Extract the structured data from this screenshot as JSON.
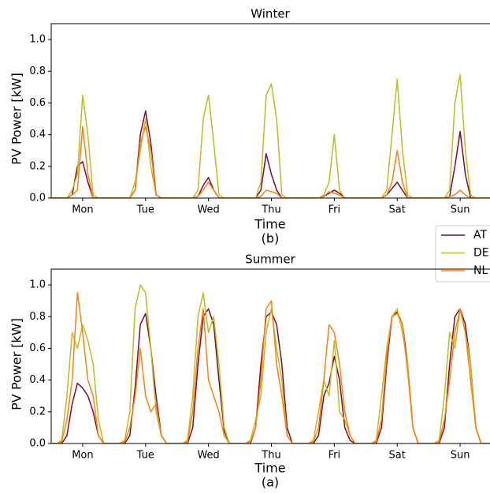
{
  "chart_data": [
    {
      "type": "line",
      "title": "Winter",
      "xlabel": "Time",
      "caption": "(b)",
      "ylabel": "PV Power [kW]",
      "legend": "outside right",
      "xlim": [
        0,
        168
      ],
      "ylim": [
        0,
        1.1
      ],
      "xticks": [
        {
          "value": 12,
          "label": "Mon"
        },
        {
          "value": 36,
          "label": "Tue"
        },
        {
          "value": 60,
          "label": "Wed"
        },
        {
          "value": 84,
          "label": "Thu"
        },
        {
          "value": 108,
          "label": "Fri"
        },
        {
          "value": 132,
          "label": "Sat"
        },
        {
          "value": 156,
          "label": "Sun"
        }
      ],
      "yticks": [
        {
          "value": 0,
          "label": "0.0"
        },
        0.2,
        0.4,
        0.6,
        0.8,
        {
          "value": 1,
          "label": "1.0"
        }
      ],
      "x": [
        0,
        2,
        4,
        6,
        8,
        10,
        12,
        14,
        16,
        18,
        20,
        22,
        24,
        26,
        28,
        30,
        32,
        34,
        36,
        38,
        40,
        42,
        44,
        46,
        48,
        50,
        52,
        54,
        56,
        58,
        60,
        62,
        64,
        66,
        68,
        70,
        72,
        74,
        76,
        78,
        80,
        82,
        84,
        86,
        88,
        90,
        92,
        94,
        96,
        98,
        100,
        102,
        104,
        106,
        108,
        110,
        112,
        114,
        116,
        118,
        120,
        122,
        124,
        126,
        128,
        130,
        132,
        134,
        136,
        138,
        140,
        142,
        144,
        146,
        148,
        150,
        152,
        154,
        156,
        158,
        160,
        162,
        164,
        166,
        168
      ],
      "series": [
        {
          "name": "AT",
          "color": "#7b0a2e",
          "values": [
            0,
            0,
            0,
            0,
            0.02,
            0.2,
            0.23,
            0.1,
            0,
            0,
            0,
            0,
            0,
            0,
            0,
            0,
            0.05,
            0.4,
            0.55,
            0.35,
            0.02,
            0,
            0,
            0,
            0,
            0,
            0,
            0,
            0.01,
            0.08,
            0.13,
            0.05,
            0,
            0,
            0,
            0,
            0,
            0,
            0,
            0,
            0.05,
            0.28,
            0.15,
            0.05,
            0,
            0,
            0,
            0,
            0,
            0,
            0,
            0,
            0.01,
            0.03,
            0.05,
            0.03,
            0,
            0,
            0,
            0,
            0,
            0,
            0,
            0,
            0.02,
            0.06,
            0.1,
            0.05,
            0,
            0,
            0,
            0,
            0,
            0,
            0,
            0,
            0.01,
            0.2,
            0.42,
            0.15,
            0,
            0,
            0,
            0,
            0
          ]
        },
        {
          "name": "DE",
          "color": "#bcbd22",
          "values": [
            0,
            0,
            0,
            0,
            0.05,
            0.15,
            0.65,
            0.4,
            0.02,
            0,
            0,
            0,
            0,
            0,
            0,
            0,
            0.1,
            0.3,
            0.5,
            0.2,
            0.02,
            0,
            0,
            0,
            0,
            0,
            0,
            0,
            0.05,
            0.5,
            0.65,
            0.35,
            0.02,
            0,
            0,
            0,
            0,
            0,
            0,
            0,
            0.1,
            0.65,
            0.72,
            0.5,
            0.02,
            0,
            0,
            0,
            0,
            0,
            0,
            0,
            0.02,
            0.1,
            0.4,
            0.05,
            0,
            0,
            0,
            0,
            0,
            0,
            0,
            0,
            0.05,
            0.4,
            0.75,
            0.3,
            0.02,
            0,
            0,
            0,
            0,
            0,
            0,
            0,
            0.05,
            0.6,
            0.78,
            0.3,
            0.02,
            0,
            0,
            0,
            0
          ]
        },
        {
          "name": "NL",
          "color": "#ff7f0e",
          "values": [
            0,
            0,
            0,
            0,
            0.02,
            0.05,
            0.45,
            0.15,
            0,
            0,
            0,
            0,
            0,
            0,
            0,
            0,
            0.05,
            0.35,
            0.45,
            0.3,
            0.02,
            0,
            0,
            0,
            0,
            0,
            0,
            0,
            0.01,
            0.05,
            0.1,
            0.05,
            0,
            0,
            0,
            0,
            0,
            0,
            0,
            0,
            0.01,
            0.05,
            0.04,
            0.03,
            0,
            0,
            0,
            0,
            0,
            0,
            0,
            0,
            0.01,
            0.04,
            0.03,
            0.02,
            0,
            0,
            0,
            0,
            0,
            0,
            0,
            0,
            0.02,
            0.1,
            0.3,
            0.1,
            0,
            0,
            0,
            0,
            0,
            0,
            0,
            0,
            0.01,
            0.02,
            0.05,
            0.02,
            0,
            0,
            0,
            0,
            0
          ]
        }
      ]
    },
    {
      "type": "line",
      "title": "Summer",
      "xlabel": "Time",
      "caption": "(a)",
      "ylabel": "PV Power [kW]",
      "xlim": [
        0,
        168
      ],
      "ylim": [
        0,
        1.1
      ],
      "xticks": [
        {
          "value": 12,
          "label": "Mon"
        },
        {
          "value": 36,
          "label": "Tue"
        },
        {
          "value": 60,
          "label": "Wed"
        },
        {
          "value": 84,
          "label": "Thu"
        },
        {
          "value": 108,
          "label": "Fri"
        },
        {
          "value": 132,
          "label": "Sat"
        },
        {
          "value": 156,
          "label": "Sun"
        }
      ],
      "yticks": [
        {
          "value": 0,
          "label": "0.0"
        },
        0.2,
        0.4,
        0.6,
        0.8,
        {
          "value": 1,
          "label": "1.0"
        }
      ],
      "x": [
        0,
        2,
        4,
        6,
        8,
        10,
        12,
        14,
        16,
        18,
        20,
        22,
        24,
        26,
        28,
        30,
        32,
        34,
        36,
        38,
        40,
        42,
        44,
        46,
        48,
        50,
        52,
        54,
        56,
        58,
        60,
        62,
        64,
        66,
        68,
        70,
        72,
        74,
        76,
        78,
        80,
        82,
        84,
        86,
        88,
        90,
        92,
        94,
        96,
        98,
        100,
        102,
        104,
        106,
        108,
        110,
        112,
        114,
        116,
        118,
        120,
        122,
        124,
        126,
        128,
        130,
        132,
        134,
        136,
        138,
        140,
        142,
        144,
        146,
        148,
        150,
        152,
        154,
        156,
        158,
        160,
        162,
        164,
        166,
        168
      ],
      "series": [
        {
          "name": "AT",
          "color": "#7b0a2e",
          "values": [
            0,
            0,
            0,
            0.05,
            0.25,
            0.38,
            0.35,
            0.3,
            0.2,
            0.05,
            0,
            0,
            0,
            0,
            0,
            0.05,
            0.35,
            0.75,
            0.82,
            0.6,
            0.3,
            0.05,
            0,
            0,
            0,
            0,
            0,
            0.1,
            0.5,
            0.8,
            0.85,
            0.75,
            0.4,
            0.08,
            0,
            0,
            0,
            0,
            0,
            0.1,
            0.5,
            0.8,
            0.83,
            0.75,
            0.5,
            0.1,
            0,
            0,
            0,
            0,
            0,
            0.05,
            0.3,
            0.38,
            0.55,
            0.4,
            0.1,
            0.02,
            0,
            0,
            0,
            0,
            0,
            0.1,
            0.5,
            0.8,
            0.83,
            0.75,
            0.5,
            0.1,
            0,
            0,
            0,
            0,
            0,
            0.1,
            0.5,
            0.8,
            0.85,
            0.75,
            0.5,
            0.1,
            0,
            0,
            0
          ]
        },
        {
          "name": "DE",
          "color": "#bcbd22",
          "values": [
            0,
            0,
            0.02,
            0.3,
            0.7,
            0.6,
            0.75,
            0.65,
            0.5,
            0.15,
            0,
            0,
            0,
            0,
            0.02,
            0.2,
            0.85,
            1.0,
            0.95,
            0.6,
            0.2,
            0.05,
            0,
            0,
            0,
            0,
            0.02,
            0.3,
            0.8,
            0.95,
            0.7,
            0.8,
            0.5,
            0.1,
            0,
            0,
            0,
            0,
            0.02,
            0.15,
            0.3,
            0.7,
            0.85,
            0.6,
            0.4,
            0.05,
            0,
            0,
            0,
            0,
            0.02,
            0.2,
            0.4,
            0.3,
            0.65,
            0.2,
            0.15,
            0.05,
            0,
            0,
            0,
            0,
            0.02,
            0.3,
            0.6,
            0.8,
            0.85,
            0.7,
            0.5,
            0.1,
            0,
            0,
            0,
            0,
            0.02,
            0.3,
            0.7,
            0.6,
            0.85,
            0.7,
            0.5,
            0.1,
            0,
            0,
            0
          ]
        },
        {
          "name": "NL",
          "color": "#ff7f0e",
          "values": [
            0,
            0,
            0.01,
            0.15,
            0.4,
            0.95,
            0.7,
            0.4,
            0.3,
            0.05,
            0,
            0,
            0,
            0,
            0.01,
            0.1,
            0.3,
            0.6,
            0.3,
            0.2,
            0.25,
            0.05,
            0,
            0,
            0,
            0,
            0.01,
            0.2,
            0.6,
            0.85,
            0.4,
            0.3,
            0.2,
            0.05,
            0,
            0,
            0,
            0,
            0.01,
            0.1,
            0.4,
            0.85,
            0.9,
            0.5,
            0.3,
            0.05,
            0,
            0,
            0,
            0,
            0.01,
            0.1,
            0.4,
            0.75,
            0.7,
            0.5,
            0.2,
            0.05,
            0,
            0,
            0,
            0,
            0.01,
            0.15,
            0.55,
            0.8,
            0.82,
            0.75,
            0.45,
            0.1,
            0,
            0,
            0,
            0,
            0.01,
            0.15,
            0.4,
            0.7,
            0.85,
            0.7,
            0.4,
            0.1,
            0,
            0,
            0
          ]
        }
      ]
    }
  ]
}
